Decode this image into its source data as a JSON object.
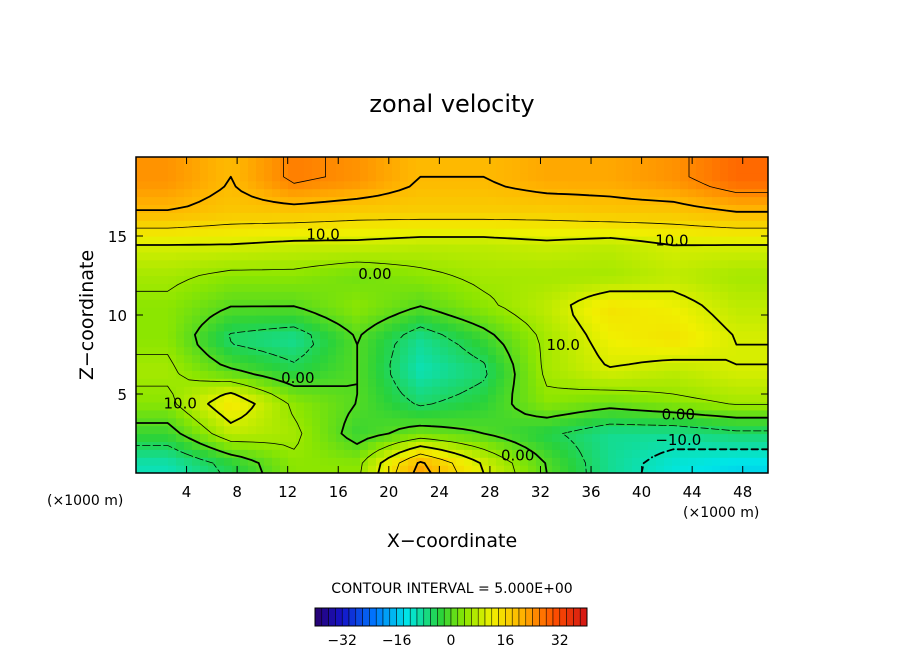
{
  "chart_data": {
    "type": "heatmap",
    "title": "zonal velocity",
    "xlabel": "X−coordinate",
    "ylabel": "Z−coordinate",
    "x_unit_label": "(×1000 m)",
    "z_unit_label": "(×1000 m)",
    "xlim": [
      0,
      50
    ],
    "ylim": [
      0,
      20
    ],
    "x_ticks": [
      4,
      8,
      12,
      16,
      20,
      24,
      28,
      32,
      36,
      40,
      44,
      48
    ],
    "x_tick_labels": [
      "4",
      "8",
      "12",
      "16",
      "20",
      "24",
      "28",
      "32",
      "36",
      "40",
      "44",
      "48"
    ],
    "y_ticks": [
      5,
      10,
      15
    ],
    "y_tick_labels": [
      "5",
      "10",
      "15"
    ],
    "contour_interval_text": "CONTOUR INTERVAL = 5.000E+00",
    "colorbar": {
      "range": [
        -40,
        40
      ],
      "ticks": [
        -32,
        -16,
        0,
        16,
        32
      ],
      "tick_labels": [
        "−32",
        "−16",
        "0",
        "16",
        "32"
      ]
    },
    "contour_labels": [
      {
        "text": "10.0",
        "x": 14.8,
        "z": 15.1
      },
      {
        "text": "0.00",
        "x": 18.9,
        "z": 12.6
      },
      {
        "text": "10.0",
        "x": 42.4,
        "z": 14.7
      },
      {
        "text": "10.0",
        "x": 33.8,
        "z": 8.1
      },
      {
        "text": "0.00",
        "x": 12.8,
        "z": 6.0
      },
      {
        "text": "10.0",
        "x": 3.5,
        "z": 4.4
      },
      {
        "text": "0.00",
        "x": 42.9,
        "z": 3.7
      },
      {
        "text": "0.00",
        "x": 30.2,
        "z": 1.1
      },
      {
        "text": "−10.0",
        "x": 42.9,
        "z": 2.1
      }
    ],
    "field": {
      "z": [
        0.5,
        2.5,
        4.5,
        6.5,
        8.5,
        10.5,
        12.5,
        14.5,
        16.5,
        18.5
      ],
      "x": [
        2.5,
        7.5,
        12.5,
        17.5,
        22.5,
        27.5,
        32.5,
        37.5,
        42.5,
        47.5
      ],
      "u": [
        [
          -10,
          -4,
          4,
          4,
          22,
          10,
          0,
          -8,
          -12,
          -14
        ],
        [
          -2,
          8,
          6,
          -2,
          2,
          0,
          -4,
          -8,
          -8,
          -6
        ],
        [
          4,
          14,
          4,
          0,
          -6,
          -3,
          4,
          2,
          4,
          6
        ],
        [
          6,
          0,
          -4,
          0,
          -10,
          -6,
          6,
          10,
          8,
          10
        ],
        [
          4,
          -6,
          -8,
          0,
          -8,
          -2,
          6,
          12,
          14,
          10
        ],
        [
          4,
          0,
          0,
          4,
          0,
          4,
          8,
          14,
          12,
          8
        ],
        [
          6,
          4,
          4,
          2,
          4,
          6,
          6,
          6,
          8,
          6
        ],
        [
          10,
          10,
          9,
          9,
          8,
          8,
          9,
          8,
          10,
          10
        ],
        [
          20,
          18,
          18,
          17,
          17,
          17,
          17,
          18,
          18,
          20
        ],
        [
          24,
          20,
          26,
          24,
          20,
          20,
          22,
          22,
          24,
          28
        ]
      ]
    }
  }
}
